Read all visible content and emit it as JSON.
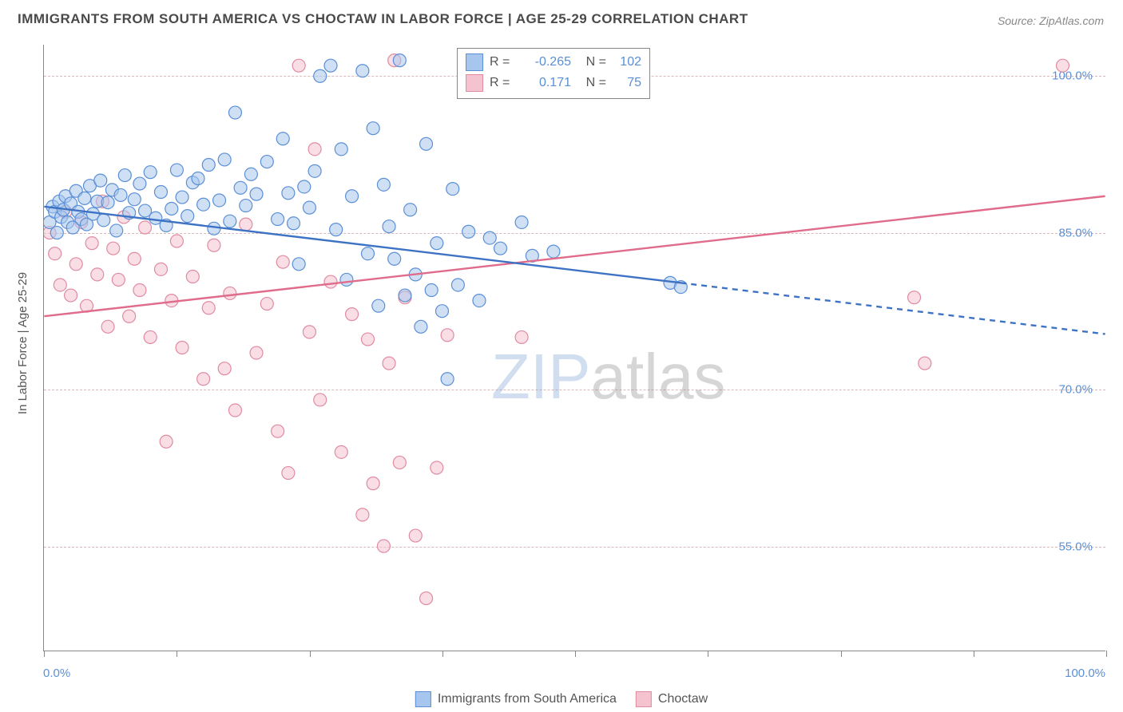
{
  "title": "IMMIGRANTS FROM SOUTH AMERICA VS CHOCTAW IN LABOR FORCE | AGE 25-29 CORRELATION CHART",
  "source": "Source: ZipAtlas.com",
  "y_axis_label": "In Labor Force | Age 25-29",
  "watermark": {
    "part1": "ZIP",
    "part2": "atlas"
  },
  "chart": {
    "type": "scatter",
    "xlim": [
      0,
      100
    ],
    "ylim": [
      45,
      103
    ],
    "x_ticks": [
      0,
      12.5,
      25,
      37.5,
      50,
      62.5,
      75,
      87.5,
      100
    ],
    "x_tick_labels": {
      "0": "0.0%",
      "100": "100.0%"
    },
    "y_ticks": [
      55,
      70,
      85,
      100
    ],
    "y_tick_labels": [
      "55.0%",
      "70.0%",
      "85.0%",
      "100.0%"
    ],
    "background_color": "#ffffff",
    "grid_color": "#d8b8b8",
    "axis_color": "#888888",
    "tick_label_color": "#5b8fd6",
    "marker_radius": 8,
    "marker_opacity": 0.55,
    "marker_stroke_width": 1.2,
    "line_width": 2.4
  },
  "series": [
    {
      "name": "Immigrants from South America",
      "fill_color": "#a7c6ed",
      "stroke_color": "#5b8fd6",
      "line_color": "#3d72c4",
      "R": "-0.265",
      "N": "102",
      "trend": {
        "x1": 0,
        "y1": 87.5,
        "x2": 60,
        "y2": 80.2
      },
      "trend_ext": {
        "x1": 60,
        "y1": 80.2,
        "x2": 100,
        "y2": 75.3
      },
      "points": [
        [
          0.5,
          86
        ],
        [
          0.8,
          87.5
        ],
        [
          1,
          87
        ],
        [
          1.2,
          85
        ],
        [
          1.4,
          88
        ],
        [
          1.6,
          86.5
        ],
        [
          1.8,
          87.2
        ],
        [
          2,
          88.5
        ],
        [
          2.2,
          86
        ],
        [
          2.5,
          87.8
        ],
        [
          2.7,
          85.5
        ],
        [
          3,
          89
        ],
        [
          3.2,
          87
        ],
        [
          3.5,
          86.3
        ],
        [
          3.8,
          88.3
        ],
        [
          4,
          85.8
        ],
        [
          4.3,
          89.5
        ],
        [
          4.6,
          86.8
        ],
        [
          5,
          88
        ],
        [
          5.3,
          90
        ],
        [
          5.6,
          86.2
        ],
        [
          6,
          87.9
        ],
        [
          6.4,
          89.1
        ],
        [
          6.8,
          85.2
        ],
        [
          7.2,
          88.6
        ],
        [
          7.6,
          90.5
        ],
        [
          8,
          86.9
        ],
        [
          8.5,
          88.2
        ],
        [
          9,
          89.7
        ],
        [
          9.5,
          87.1
        ],
        [
          10,
          90.8
        ],
        [
          10.5,
          86.4
        ],
        [
          11,
          88.9
        ],
        [
          11.5,
          85.7
        ],
        [
          12,
          87.3
        ],
        [
          12.5,
          91
        ],
        [
          13,
          88.4
        ],
        [
          13.5,
          86.6
        ],
        [
          14,
          89.8
        ],
        [
          14.5,
          90.2
        ],
        [
          15,
          87.7
        ],
        [
          15.5,
          91.5
        ],
        [
          16,
          85.4
        ],
        [
          16.5,
          88.1
        ],
        [
          17,
          92
        ],
        [
          17.5,
          86.1
        ],
        [
          18,
          96.5
        ],
        [
          18.5,
          89.3
        ],
        [
          19,
          87.6
        ],
        [
          19.5,
          90.6
        ],
        [
          20,
          88.7
        ],
        [
          21,
          91.8
        ],
        [
          22,
          86.3
        ],
        [
          22.5,
          94
        ],
        [
          23,
          88.8
        ],
        [
          23.5,
          85.9
        ],
        [
          24,
          82
        ],
        [
          24.5,
          89.4
        ],
        [
          25,
          87.4
        ],
        [
          25.5,
          90.9
        ],
        [
          26,
          100
        ],
        [
          27,
          101
        ],
        [
          27.5,
          85.3
        ],
        [
          28,
          93
        ],
        [
          28.5,
          80.5
        ],
        [
          29,
          88.5
        ],
        [
          30,
          100.5
        ],
        [
          30.5,
          83
        ],
        [
          31,
          95
        ],
        [
          31.5,
          78
        ],
        [
          32,
          89.6
        ],
        [
          32.5,
          85.6
        ],
        [
          33,
          82.5
        ],
        [
          33.5,
          101.5
        ],
        [
          34,
          79
        ],
        [
          34.5,
          87.2
        ],
        [
          35,
          81
        ],
        [
          35.5,
          76
        ],
        [
          36,
          93.5
        ],
        [
          36.5,
          79.5
        ],
        [
          37,
          84
        ],
        [
          37.5,
          77.5
        ],
        [
          38,
          71
        ],
        [
          38.5,
          89.2
        ],
        [
          39,
          80
        ],
        [
          40,
          85.1
        ],
        [
          41,
          78.5
        ],
        [
          42,
          84.5
        ],
        [
          43,
          83.5
        ],
        [
          45,
          86
        ],
        [
          46,
          82.8
        ],
        [
          48,
          83.2
        ],
        [
          59,
          80.2
        ],
        [
          60,
          79.8
        ]
      ]
    },
    {
      "name": "Choctaw",
      "fill_color": "#f5c3cf",
      "stroke_color": "#e08ba2",
      "line_color": "#e06b8b",
      "R": "0.171",
      "N": "75",
      "trend": {
        "x1": 0,
        "y1": 77,
        "x2": 100,
        "y2": 88.5
      },
      "points": [
        [
          0.5,
          85
        ],
        [
          1,
          83
        ],
        [
          1.5,
          80
        ],
        [
          2,
          87
        ],
        [
          2.5,
          79
        ],
        [
          3,
          82
        ],
        [
          3.5,
          86
        ],
        [
          4,
          78
        ],
        [
          4.5,
          84
        ],
        [
          5,
          81
        ],
        [
          5.5,
          88
        ],
        [
          6,
          76
        ],
        [
          6.5,
          83.5
        ],
        [
          7,
          80.5
        ],
        [
          7.5,
          86.5
        ],
        [
          8,
          77
        ],
        [
          8.5,
          82.5
        ],
        [
          9,
          79.5
        ],
        [
          9.5,
          85.5
        ],
        [
          10,
          75
        ],
        [
          11,
          81.5
        ],
        [
          11.5,
          65
        ],
        [
          12,
          78.5
        ],
        [
          12.5,
          84.2
        ],
        [
          13,
          74
        ],
        [
          14,
          80.8
        ],
        [
          15,
          71
        ],
        [
          15.5,
          77.8
        ],
        [
          16,
          83.8
        ],
        [
          17,
          72
        ],
        [
          17.5,
          79.2
        ],
        [
          18,
          68
        ],
        [
          19,
          85.8
        ],
        [
          20,
          73.5
        ],
        [
          21,
          78.2
        ],
        [
          22,
          66
        ],
        [
          22.5,
          82.2
        ],
        [
          23,
          62
        ],
        [
          24,
          101
        ],
        [
          25,
          75.5
        ],
        [
          25.5,
          93
        ],
        [
          26,
          69
        ],
        [
          27,
          80.3
        ],
        [
          28,
          64
        ],
        [
          29,
          77.2
        ],
        [
          30,
          58
        ],
        [
          30.5,
          74.8
        ],
        [
          31,
          61
        ],
        [
          32,
          55
        ],
        [
          32.5,
          72.5
        ],
        [
          33,
          101.5
        ],
        [
          33.5,
          63
        ],
        [
          34,
          78.8
        ],
        [
          35,
          56
        ],
        [
          36,
          50
        ],
        [
          37,
          62.5
        ],
        [
          38,
          75.2
        ],
        [
          45,
          75
        ],
        [
          82,
          78.8
        ],
        [
          83,
          72.5
        ],
        [
          96,
          101
        ]
      ]
    }
  ],
  "bottom_legend": [
    {
      "label": "Immigrants from South America",
      "fill": "#a7c6ed",
      "stroke": "#5b8fd6"
    },
    {
      "label": "Choctaw",
      "fill": "#f5c3cf",
      "stroke": "#e08ba2"
    }
  ]
}
